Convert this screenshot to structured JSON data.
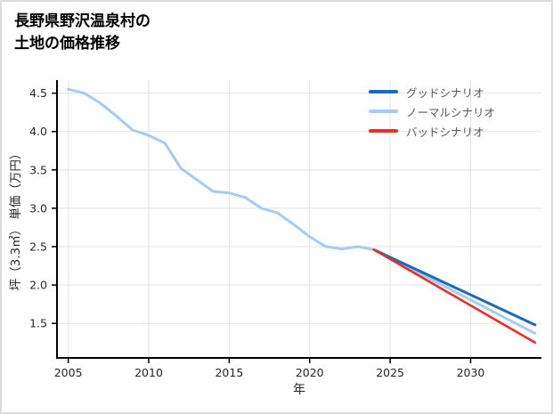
{
  "page": {
    "background": "#ffffff",
    "border_color": "#dcdcdc"
  },
  "title": {
    "line1": "長野県野沢温泉村の",
    "line2": "土地の価格推移"
  },
  "chart_data": {
    "type": "line",
    "title": "長野県野沢温泉村の土地の価格推移",
    "xlabel": "年",
    "ylabel": "坪（3.3㎡） 単価（万円）",
    "xlim": [
      2004.3,
      2034.4
    ],
    "ylim": [
      1.05,
      4.67
    ],
    "x_ticks": [
      2005,
      2010,
      2015,
      2020,
      2025,
      2030
    ],
    "y_ticks": [
      1.5,
      2.0,
      2.5,
      3.0,
      3.5,
      4.0,
      4.5
    ],
    "grid": true,
    "grid_color": "#e3e3e3",
    "axis_color": "#000000",
    "legend_position": "top-right",
    "draw_order": [
      1,
      0,
      2
    ],
    "series": [
      {
        "name": "グッドシナリオ",
        "color": "#1b6cb8",
        "width": 3,
        "x": [
          2024,
          2034
        ],
        "y": [
          2.46,
          1.48
        ]
      },
      {
        "name": "ノーマルシナリオ",
        "color": "#a4cdf1",
        "width": 3,
        "x": [
          2005,
          2006,
          2007,
          2008,
          2009,
          2010,
          2011,
          2012,
          2013,
          2014,
          2015,
          2016,
          2017,
          2018,
          2019,
          2020,
          2021,
          2022,
          2023,
          2024,
          2034
        ],
        "y": [
          4.55,
          4.5,
          4.37,
          4.2,
          4.02,
          3.95,
          3.85,
          3.52,
          3.37,
          3.22,
          3.2,
          3.14,
          3.0,
          2.94,
          2.79,
          2.63,
          2.5,
          2.47,
          2.5,
          2.46,
          1.37
        ]
      },
      {
        "name": "バッドシナリオ",
        "color": "#ee2e24",
        "width": 2.6,
        "x": [
          2024,
          2034
        ],
        "y": [
          2.46,
          1.25
        ]
      }
    ]
  }
}
